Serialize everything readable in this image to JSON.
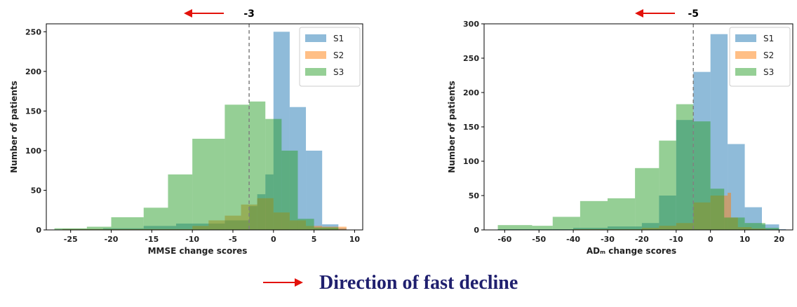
{
  "colors": {
    "S1": "#1f77b4",
    "S2": "#ff7f0e",
    "S3": "#2ca02c",
    "arrow": "#e3120b",
    "threshold": "#808080",
    "caption": "#1f1f6e"
  },
  "caption": {
    "text": "Direction of fast decline"
  },
  "chart_data": [
    {
      "type": "bar",
      "xlabel": "MMSE change scores",
      "ylabel": "Number of patients",
      "xlim": [
        -28,
        11
      ],
      "ylim": [
        0,
        260
      ],
      "xticks": [
        -25,
        -20,
        -15,
        -10,
        -5,
        0,
        5,
        10
      ],
      "yticks": [
        0,
        50,
        100,
        150,
        200,
        250
      ],
      "threshold": -3,
      "threshold_label": "-3",
      "legend_position": "top-right",
      "grid": false,
      "series": [
        {
          "name": "S1",
          "bins": [
            [
              -26,
              -21,
              1
            ],
            [
              -21,
              -16,
              2
            ],
            [
              -16,
              -12,
              5
            ],
            [
              -12,
              -6,
              8
            ],
            [
              -6,
              -3,
              12
            ],
            [
              -3,
              -2,
              30
            ],
            [
              -2,
              -1,
              45
            ],
            [
              -1,
              0,
              70
            ],
            [
              0,
              2,
              250
            ],
            [
              2,
              4,
              155
            ],
            [
              4,
              6,
              100
            ],
            [
              6,
              8,
              7
            ],
            [
              8,
              9,
              2
            ]
          ]
        },
        {
          "name": "S2",
          "bins": [
            [
              -26,
              -10,
              1
            ],
            [
              -10,
              -8,
              5
            ],
            [
              -8,
              -6,
              12
            ],
            [
              -6,
              -4,
              18
            ],
            [
              -4,
              -2,
              32
            ],
            [
              -2,
              0,
              40
            ],
            [
              0,
              2,
              22
            ],
            [
              2,
              4,
              12
            ],
            [
              4,
              6,
              5
            ],
            [
              6,
              8,
              4
            ],
            [
              8,
              9,
              4
            ]
          ]
        },
        {
          "name": "S3",
          "bins": [
            [
              -27,
              -23,
              2
            ],
            [
              -23,
              -20,
              4
            ],
            [
              -20,
              -16,
              16
            ],
            [
              -16,
              -13,
              28
            ],
            [
              -13,
              -10,
              70
            ],
            [
              -10,
              -6,
              115
            ],
            [
              -6,
              -3,
              158
            ],
            [
              -3,
              -1,
              162
            ],
            [
              -1,
              1,
              140
            ],
            [
              1,
              3,
              100
            ],
            [
              3,
              5,
              14
            ],
            [
              5,
              8,
              3
            ]
          ]
        }
      ]
    },
    {
      "type": "bar",
      "xlabel": "ADₘ change scores",
      "ylabel": "Number of patients",
      "xlim": [
        -66,
        24
      ],
      "ylim": [
        0,
        300
      ],
      "xticks": [
        -60,
        -50,
        -40,
        -30,
        -20,
        -10,
        0,
        10,
        20
      ],
      "yticks": [
        0,
        50,
        100,
        150,
        200,
        250,
        300
      ],
      "threshold": -5,
      "threshold_label": "-5",
      "legend_position": "top-right",
      "grid": false,
      "series": [
        {
          "name": "S1",
          "bins": [
            [
              -62,
              -40,
              1
            ],
            [
              -40,
              -30,
              3
            ],
            [
              -30,
              -20,
              5
            ],
            [
              -20,
              -15,
              10
            ],
            [
              -15,
              -10,
              50
            ],
            [
              -10,
              -5,
              160
            ],
            [
              -5,
              0,
              230
            ],
            [
              0,
              5,
              285
            ],
            [
              5,
              10,
              125
            ],
            [
              10,
              15,
              33
            ],
            [
              15,
              20,
              8
            ],
            [
              20,
              22,
              1
            ]
          ]
        },
        {
          "name": "S2",
          "bins": [
            [
              -40,
              -20,
              1
            ],
            [
              -20,
              -15,
              3
            ],
            [
              -15,
              -10,
              6
            ],
            [
              -10,
              -5,
              10
            ],
            [
              -5,
              0,
              40
            ],
            [
              0,
              5,
              50
            ],
            [
              5,
              6,
              54
            ],
            [
              6,
              8,
              18
            ],
            [
              8,
              12,
              4
            ],
            [
              12,
              16,
              2
            ]
          ]
        },
        {
          "name": "S3",
          "bins": [
            [
              -62,
              -52,
              7
            ],
            [
              -52,
              -46,
              6
            ],
            [
              -46,
              -38,
              19
            ],
            [
              -38,
              -30,
              42
            ],
            [
              -30,
              -22,
              46
            ],
            [
              -22,
              -15,
              90
            ],
            [
              -15,
              -10,
              130
            ],
            [
              -10,
              -5,
              183
            ],
            [
              -5,
              0,
              158
            ],
            [
              0,
              4,
              60
            ],
            [
              4,
              10,
              18
            ],
            [
              10,
              16,
              10
            ],
            [
              16,
              20,
              3
            ]
          ]
        }
      ]
    }
  ]
}
